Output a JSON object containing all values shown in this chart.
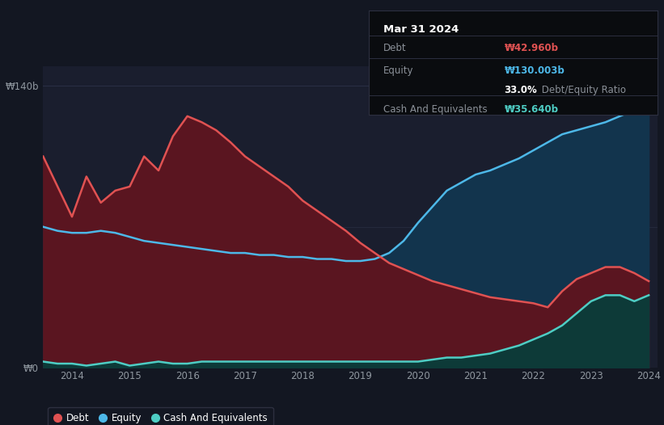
{
  "background_color": "#131722",
  "plot_bg_color": "#1a1e2e",
  "title_box": {
    "date": "Mar 31 2024",
    "debt_label": "Debt",
    "debt_value": "₩42.960b",
    "equity_label": "Equity",
    "equity_value": "₩130.003b",
    "ratio_bold": "33.0%",
    "ratio_rest": " Debt/Equity Ratio",
    "cash_label": "Cash And Equivalents",
    "cash_value": "₩35.640b"
  },
  "y_label_140": "₩140b",
  "y_label_0": "₩0",
  "x_ticks": [
    "2014",
    "2015",
    "2016",
    "2017",
    "2018",
    "2019",
    "2020",
    "2021",
    "2022",
    "2023",
    "2024"
  ],
  "debt_color": "#e05252",
  "equity_color": "#4db8e8",
  "cash_color": "#4ecdc4",
  "debt_fill": "#5a1520",
  "equity_fill": "#12344d",
  "cash_fill": "#0d3a38",
  "years": [
    2013.5,
    2013.75,
    2014.0,
    2014.25,
    2014.5,
    2014.75,
    2015.0,
    2015.25,
    2015.5,
    2015.75,
    2016.0,
    2016.25,
    2016.5,
    2016.75,
    2017.0,
    2017.25,
    2017.5,
    2017.75,
    2018.0,
    2018.25,
    2018.5,
    2018.75,
    2019.0,
    2019.25,
    2019.5,
    2019.75,
    2020.0,
    2020.25,
    2020.5,
    2020.75,
    2021.0,
    2021.25,
    2021.5,
    2021.75,
    2022.0,
    2022.25,
    2022.5,
    2022.75,
    2023.0,
    2023.25,
    2023.5,
    2023.75,
    2024.0
  ],
  "debt": [
    105,
    90,
    75,
    95,
    82,
    88,
    90,
    105,
    98,
    115,
    125,
    122,
    118,
    112,
    105,
    100,
    95,
    90,
    83,
    78,
    73,
    68,
    62,
    57,
    52,
    49,
    46,
    43,
    41,
    39,
    37,
    35,
    34,
    33,
    32,
    30,
    38,
    44,
    47,
    50,
    50,
    47,
    43
  ],
  "equity": [
    70,
    68,
    67,
    67,
    68,
    67,
    65,
    63,
    62,
    61,
    60,
    59,
    58,
    57,
    57,
    56,
    56,
    55,
    55,
    54,
    54,
    53,
    53,
    54,
    57,
    63,
    72,
    80,
    88,
    92,
    96,
    98,
    101,
    104,
    108,
    112,
    116,
    118,
    120,
    122,
    125,
    128,
    130
  ],
  "cash": [
    3,
    2,
    2,
    1,
    2,
    3,
    1,
    2,
    3,
    2,
    2,
    3,
    3,
    3,
    3,
    3,
    3,
    3,
    3,
    3,
    3,
    3,
    3,
    3,
    3,
    3,
    3,
    4,
    5,
    5,
    6,
    7,
    9,
    11,
    14,
    17,
    21,
    27,
    33,
    36,
    36,
    33,
    36
  ],
  "ylim": [
    0,
    150
  ],
  "xlim_left": 2013.5,
  "xlim_right": 2024.15,
  "grid_y": [
    70
  ]
}
